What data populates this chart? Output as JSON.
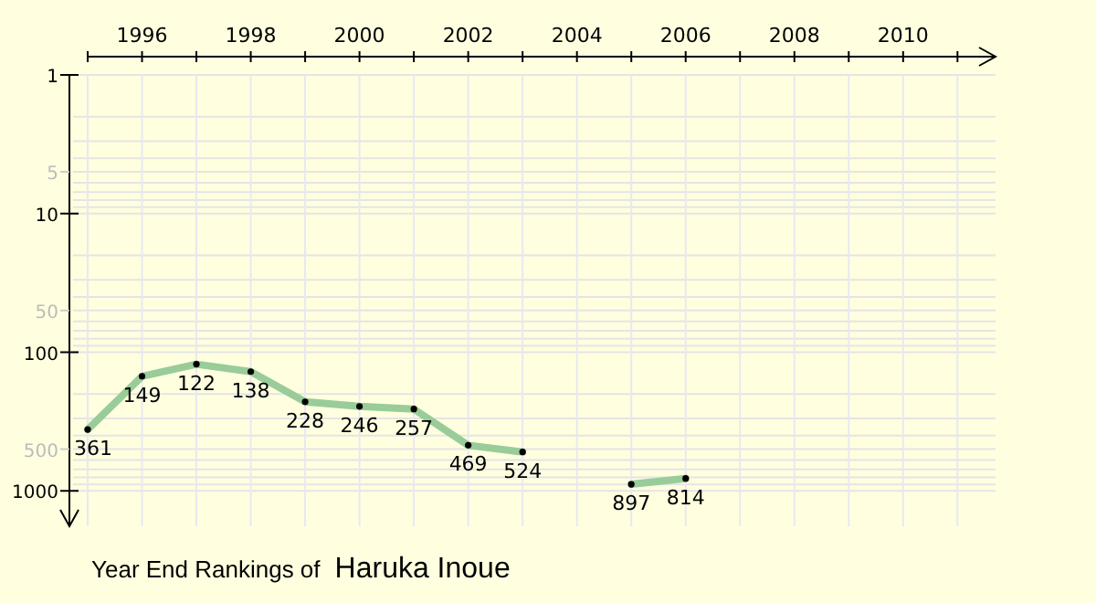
{
  "chart_data": {
    "type": "line",
    "title": "Year End Rankings of",
    "subtitle": "Haruka Inoue",
    "x": [
      1995,
      1996,
      1997,
      1998,
      1999,
      2000,
      2001,
      2002,
      2003,
      2004,
      2005,
      2006
    ],
    "series": [
      {
        "color": "#99cc99",
        "values": [
          361,
          149,
          122,
          138,
          228,
          246,
          257,
          469,
          524,
          null,
          897,
          814
        ]
      }
    ],
    "xlim": [
      1995,
      2011.7
    ],
    "xticks": [
      {
        "value": 1995,
        "label": null
      },
      1996,
      {
        "value": 1997,
        "label": null
      },
      1998,
      {
        "value": 1999,
        "label": null
      },
      2000,
      {
        "value": 2001,
        "label": null
      },
      2002,
      {
        "value": 2003,
        "label": null
      },
      2004,
      {
        "value": 2005,
        "label": null
      },
      2006,
      {
        "value": 2007,
        "label": null
      },
      2008,
      {
        "value": 2009,
        "label": null
      },
      2010,
      {
        "value": 2011,
        "label": null
      }
    ],
    "ylim": [
      1800,
      1
    ],
    "yticks": [
      1,
      5,
      10,
      50,
      100,
      500,
      1000
    ],
    "log": true,
    "grid": true,
    "marker": "circle",
    "line_style": "solid",
    "data_labels": true
  }
}
